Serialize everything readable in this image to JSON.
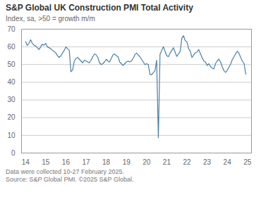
{
  "chart_data": {
    "type": "line",
    "title": "S&P Global UK Construction PMI Total Activity",
    "subtitle": "Index, sa, >50 = growth m/m",
    "footnotes": [
      "Data were collected 10-27 February 2025.",
      "Source: S&P Global PMI. ©2025 S&P Global."
    ],
    "color": "#4a7fa5",
    "grid": "y",
    "xlim": [
      13.8,
      25.2
    ],
    "xticks": [
      14,
      15,
      16,
      17,
      18,
      19,
      20,
      21,
      22,
      23,
      24,
      25
    ],
    "ylim": [
      0,
      70
    ],
    "yticks": [
      0,
      10,
      20,
      30,
      40,
      50,
      60,
      70
    ],
    "x": [
      14,
      14.083333,
      14.166667,
      14.25,
      14.333333,
      14.416667,
      14.5,
      14.583333,
      14.666667,
      14.75,
      14.833333,
      14.916667,
      15,
      15.083333,
      15.166667,
      15.25,
      15.333333,
      15.416667,
      15.5,
      15.583333,
      15.666667,
      15.75,
      15.833333,
      15.916667,
      16,
      16.083333,
      16.166667,
      16.25,
      16.333333,
      16.416667,
      16.5,
      16.583333,
      16.666667,
      16.75,
      16.833333,
      16.916667,
      17,
      17.083333,
      17.166667,
      17.25,
      17.333333,
      17.416667,
      17.5,
      17.583333,
      17.666667,
      17.75,
      17.833333,
      17.916667,
      18,
      18.083333,
      18.166667,
      18.25,
      18.333333,
      18.416667,
      18.5,
      18.583333,
      18.666667,
      18.75,
      18.833333,
      18.916667,
      19,
      19.083333,
      19.166667,
      19.25,
      19.333333,
      19.416667,
      19.5,
      19.583333,
      19.666667,
      19.75,
      19.833333,
      19.916667,
      20,
      20.083333,
      20.166667,
      20.25,
      20.333333,
      20.416667,
      20.5,
      20.583333,
      20.666667,
      20.75,
      20.833333,
      20.916667,
      21,
      21.083333,
      21.166667,
      21.25,
      21.333333,
      21.416667,
      21.5,
      21.583333,
      21.666667,
      21.75,
      21.833333,
      21.916667,
      22,
      22.083333,
      22.166667,
      22.25,
      22.333333,
      22.416667,
      22.5,
      22.583333,
      22.666667,
      22.75,
      22.833333,
      22.916667,
      23,
      23.083333,
      23.166667,
      23.25,
      23.333333,
      23.416667,
      23.5,
      23.583333,
      23.666667,
      23.75,
      23.833333,
      23.916667,
      24,
      24.083333,
      24.166667,
      24.25,
      24.333333,
      24.416667,
      24.5,
      24.583333,
      24.666667,
      24.75,
      24.833333,
      24.916667
    ],
    "values": [
      63.0,
      60.8,
      62.0,
      64.0,
      62.0,
      61.0,
      60.5,
      59.5,
      58.5,
      60.0,
      61.5,
      61.0,
      62.0,
      60.0,
      59.5,
      59.0,
      58.0,
      57.5,
      56.5,
      55.0,
      54.0,
      55.0,
      56.5,
      58.0,
      60.0,
      59.0,
      58.0,
      46.0,
      47.0,
      52.0,
      53.5,
      54.0,
      53.0,
      52.0,
      51.0,
      52.5,
      52.0,
      51.5,
      51.0,
      52.5,
      54.5,
      56.0,
      55.5,
      54.0,
      51.0,
      50.0,
      50.5,
      51.5,
      53.0,
      52.0,
      51.5,
      53.5,
      55.5,
      56.0,
      55.0,
      54.5,
      51.5,
      50.5,
      49.5,
      50.5,
      51.5,
      52.0,
      51.5,
      52.0,
      53.5,
      55.5,
      56.5,
      55.5,
      54.5,
      53.0,
      51.5,
      50.0,
      50.5,
      50.0,
      44.5,
      44.2,
      45.5,
      46.5,
      52.5,
      8.6,
      55.8,
      58.0,
      60.1,
      57.5,
      55.0,
      54.5,
      56.5,
      58.0,
      59.5,
      57.0,
      54.6,
      56.0,
      57.5,
      65.0,
      66.3,
      63.5,
      62.8,
      59.0,
      57.5,
      54.0,
      55.3,
      56.7,
      57.1,
      58.5,
      56.3,
      54.0,
      52.0,
      51.5,
      49.5,
      50.5,
      48.9,
      48.0,
      47.5,
      50.5,
      52.0,
      53.0,
      51.5,
      48.8,
      46.5,
      45.6,
      46.8,
      48.5,
      50.3,
      52.8,
      54.5,
      56.1,
      57.5,
      56.3,
      54.0,
      52.0,
      50.5,
      44.6
    ]
  }
}
